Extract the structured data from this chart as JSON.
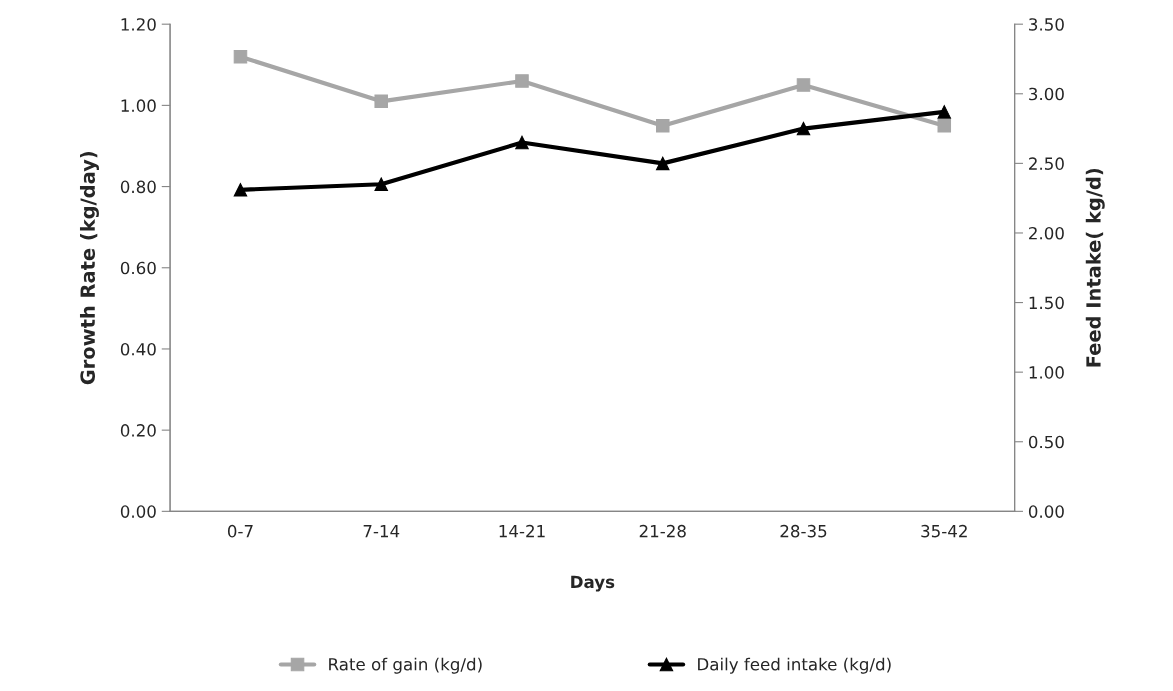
{
  "chart_data": {
    "type": "line",
    "xlabel": "Days",
    "ylabel": "Growth Rate (kg/day)",
    "y2label": "Feed Intake( kg/d)",
    "categories": [
      "0-7",
      "7-14",
      "14-21",
      "21-28",
      "28-35",
      "35-42"
    ],
    "series": [
      {
        "name": "Rate of gain (kg/d)",
        "color": "#a6a6a6",
        "marker": "square",
        "values": [
          1.12,
          1.01,
          1.06,
          0.95,
          1.05,
          0.95
        ]
      },
      {
        "name": "Daily feed intake (kg/d)",
        "color": "#000000",
        "marker": "triangle",
        "axis": "y2",
        "values": [
          2.31,
          2.35,
          2.65,
          2.5,
          2.75,
          2.87
        ]
      }
    ],
    "ylim": [
      0,
      1.2
    ],
    "yticks": [
      {
        "value": 0,
        "label": "0.00"
      },
      {
        "value": 0.2,
        "label": "0.20"
      },
      {
        "value": 0.4,
        "label": "0.40"
      },
      {
        "value": 0.6,
        "label": "0.60"
      },
      {
        "value": 0.8,
        "label": "0.80"
      },
      {
        "value": 1,
        "label": "1.00"
      },
      {
        "value": 1.2,
        "label": "1.20"
      }
    ],
    "y2lim": [
      0,
      3.5
    ],
    "y2ticks": [
      {
        "value": 0,
        "label": "0.00"
      },
      {
        "value": 0.5,
        "label": "0.50"
      },
      {
        "value": 1,
        "label": "1.00"
      },
      {
        "value": 1.5,
        "label": "1.50"
      },
      {
        "value": 2,
        "label": "2.00"
      },
      {
        "value": 2.5,
        "label": "2.50"
      },
      {
        "value": 3,
        "label": "3.00"
      },
      {
        "value": 3.5,
        "label": "3.50"
      }
    ],
    "grid": false,
    "legend": "bottom",
    "line_style": "solid"
  }
}
